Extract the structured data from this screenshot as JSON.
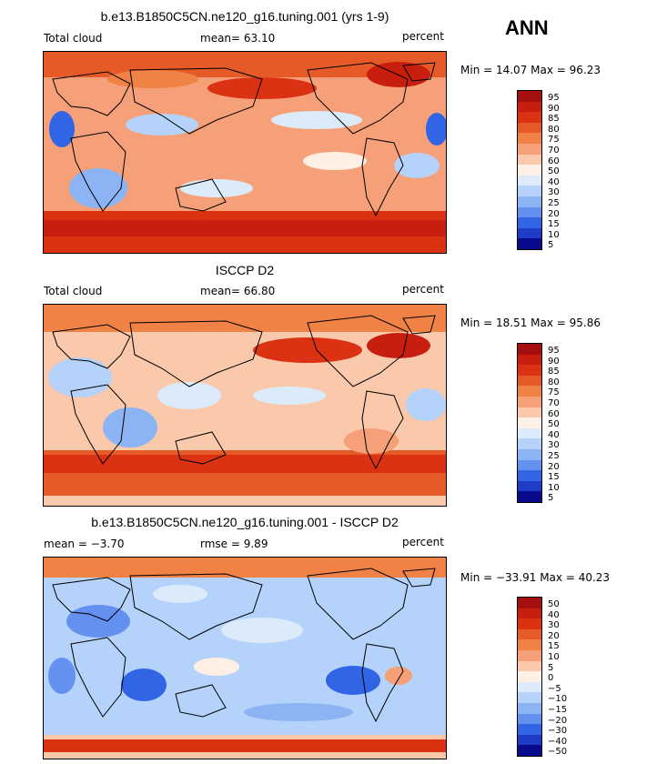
{
  "season": "ANN",
  "panels": [
    {
      "title": "b.e13.B1850C5CN.ne120_g16.tuning.001 (yrs 1-9)",
      "left_label": "Total cloud",
      "stat_label": "mean=  63.10",
      "stat2_label": "",
      "unit_label": "percent",
      "minmax": "Min =  14.07 Max =  96.23",
      "colorbar_levels": [
        "95",
        "90",
        "85",
        "80",
        "75",
        "70",
        "60",
        "50",
        "40",
        "30",
        "25",
        "20",
        "15",
        "10",
        "5"
      ]
    },
    {
      "title": "ISCCP D2",
      "left_label": "Total cloud",
      "stat_label": "mean=  66.80",
      "stat2_label": "",
      "unit_label": "percent",
      "minmax": "Min =  18.51 Max =  95.86",
      "colorbar_levels": [
        "95",
        "90",
        "85",
        "80",
        "75",
        "70",
        "60",
        "50",
        "40",
        "30",
        "25",
        "20",
        "15",
        "10",
        "5"
      ]
    },
    {
      "title": "b.e13.B1850C5CN.ne120_g16.tuning.001 - ISCCP D2",
      "left_label": "mean =  −3.70",
      "stat_label": "rmse =   9.89",
      "stat2_label": "",
      "unit_label": "percent",
      "minmax": "Min = −33.91 Max =  40.23",
      "colorbar_levels": [
        "50",
        "40",
        "30",
        "20",
        "15",
        "10",
        "5",
        "0",
        "−5",
        "−10",
        "−15",
        "−20",
        "−30",
        "−40",
        "−50"
      ]
    }
  ],
  "colorbar_colors": [
    "#a50f0f",
    "#c81e0f",
    "#dc3214",
    "#e65a28",
    "#f08246",
    "#f5a078",
    "#fac8aa",
    "#fff0e6",
    "#dcebfa",
    "#b4d2fa",
    "#8cb4f5",
    "#6491f0",
    "#3264e6",
    "#1e3cc8",
    "#0a0a8c"
  ]
}
